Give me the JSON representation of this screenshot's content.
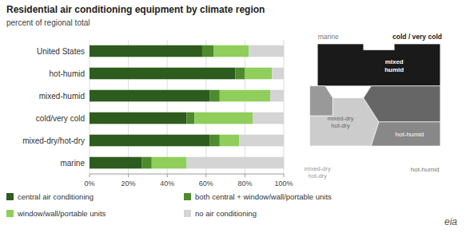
{
  "chart_data": {
    "type": "bar",
    "orientation": "horizontal",
    "stacked": true,
    "title": "Residential air conditioning equipment by climate region",
    "subtitle": "percent of regional total",
    "categories": [
      "United States",
      "hot-humid",
      "mixed-humid",
      "cold/very cold",
      "mixed-dry/hot-dry",
      "marine"
    ],
    "series": [
      {
        "name": "central air conditioning",
        "color": "#2d5c1e",
        "values": [
          58,
          75,
          62,
          50,
          62,
          27
        ]
      },
      {
        "name": "both central + window/wall/portable units",
        "color": "#4d8b2d",
        "values": [
          6,
          5,
          5,
          4,
          5,
          5
        ]
      },
      {
        "name": "window/wall/portable units",
        "color": "#8fce5a",
        "values": [
          18,
          14,
          26,
          30,
          10,
          18
        ]
      },
      {
        "name": "no air conditioning",
        "color": "#d4d4d4",
        "values": [
          18,
          6,
          7,
          16,
          23,
          50
        ]
      }
    ],
    "xlim": [
      0,
      100
    ],
    "xticks": [
      {
        "value": 0,
        "label": "0%"
      },
      {
        "value": 20,
        "label": "20%"
      },
      {
        "value": 40,
        "label": "40%"
      },
      {
        "value": 60,
        "label": "60%"
      },
      {
        "value": 80,
        "label": "80%"
      },
      {
        "value": 100,
        "label": "100%"
      }
    ],
    "grid": true,
    "legend": "bottom",
    "annotations": [
      "mixed\nhumid",
      "mixed-dry\nhot-dry",
      "hot-humid",
      "marine",
      "cold / very cold",
      "mixed-dry\nhot-dry",
      "hot-humid",
      "eia"
    ]
  }
}
